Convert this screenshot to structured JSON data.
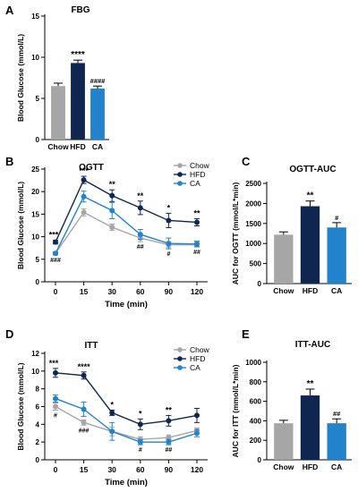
{
  "colors": {
    "chow": "#a6a6a6",
    "hfd": "#0f2650",
    "ca": "#2382cc",
    "axis": "#000000"
  },
  "chart_data": [
    {
      "id": "A",
      "panel_label": "A",
      "type": "bar",
      "title": "FBG",
      "ylabel": "Blood Glucose (mmol/L)",
      "xlabel": "",
      "ylim": [
        0,
        15
      ],
      "yticks": [
        0,
        5,
        10,
        15
      ],
      "categories": [
        "Chow",
        "HFD",
        "CA"
      ],
      "values": [
        6.5,
        9.3,
        6.2
      ],
      "errors": [
        0.35,
        0.35,
        0.3
      ],
      "bar_colors": [
        "#a6a6a6",
        "#0f2650",
        "#2382cc"
      ],
      "annotations": [
        "",
        "****",
        "####"
      ]
    },
    {
      "id": "B",
      "panel_label": "B",
      "type": "line",
      "title": "OGTT",
      "ylabel": "Blood Glucose (mmol/L)",
      "xlabel": "Time (min)",
      "ylim": [
        0,
        25
      ],
      "yticks": [
        0,
        5,
        10,
        15,
        20,
        25
      ],
      "x": [
        0,
        15,
        30,
        60,
        90,
        120
      ],
      "series": [
        {
          "name": "Chow",
          "color": "#a6a6a6",
          "marker": "circle",
          "values": [
            6.3,
            15.4,
            12.1,
            9.7,
            8.2,
            8.2
          ],
          "errors": [
            0.3,
            0.8,
            0.7,
            0.8,
            0.6,
            0.5
          ]
        },
        {
          "name": "HFD",
          "color": "#0f2650",
          "marker": "circle",
          "values": [
            8.8,
            22.6,
            19.1,
            16.4,
            13.6,
            13.2
          ],
          "errors": [
            0.4,
            0.8,
            1.3,
            1.5,
            1.6,
            0.8
          ]
        },
        {
          "name": "CA",
          "color": "#2382cc",
          "marker": "circle",
          "values": [
            6.3,
            18.9,
            15.8,
            10.5,
            8.5,
            8.4
          ],
          "errors": [
            0.3,
            1.2,
            1.8,
            1.1,
            1.2,
            0.6
          ]
        }
      ],
      "annotations_above": [
        "***",
        "***",
        "**",
        "**",
        "*",
        "**"
      ],
      "annotations_below": [
        "###",
        "",
        "",
        "##",
        "#",
        "##"
      ],
      "legend": [
        "Chow",
        "HFD",
        "CA"
      ],
      "legend_position": "top-right"
    },
    {
      "id": "C",
      "panel_label": "C",
      "type": "bar",
      "title": "OGTT-AUC",
      "ylabel": "AUC for OGTT (mmol/L*min)",
      "xlabel": "",
      "ylim": [
        0,
        2500
      ],
      "yticks": [
        0,
        500,
        1000,
        1500,
        2000,
        2500
      ],
      "categories": [
        "Chow",
        "HFD",
        "CA"
      ],
      "values": [
        1220,
        1930,
        1400
      ],
      "errors": [
        70,
        130,
        120
      ],
      "bar_colors": [
        "#a6a6a6",
        "#0f2650",
        "#2382cc"
      ],
      "annotations": [
        "",
        "**",
        "#"
      ]
    },
    {
      "id": "D",
      "panel_label": "D",
      "type": "line",
      "title": "ITT",
      "ylabel": "Blood Glucose (mmol/L)",
      "xlabel": "Time (min)",
      "ylim": [
        0,
        12
      ],
      "yticks": [
        0,
        2,
        4,
        6,
        8,
        10,
        12
      ],
      "x": [
        0,
        15,
        30,
        60,
        90,
        120
      ],
      "series": [
        {
          "name": "Chow",
          "color": "#a6a6a6",
          "marker": "circle",
          "values": [
            6.0,
            4.2,
            3.2,
            2.3,
            2.5,
            3.3
          ],
          "errors": [
            0.4,
            0.3,
            0.5,
            0.3,
            0.3,
            0.3
          ]
        },
        {
          "name": "HFD",
          "color": "#0f2650",
          "marker": "circle",
          "values": [
            9.8,
            9.5,
            5.3,
            4.0,
            4.4,
            5.0
          ],
          "errors": [
            0.5,
            0.4,
            0.3,
            0.6,
            0.6,
            0.8
          ]
        },
        {
          "name": "CA",
          "color": "#2382cc",
          "marker": "circle",
          "values": [
            6.9,
            5.7,
            3.2,
            2.0,
            2.0,
            3.0
          ],
          "errors": [
            0.4,
            0.8,
            1.0,
            0.3,
            0.3,
            0.4
          ]
        }
      ],
      "annotations_above": [
        "***",
        "****",
        "*",
        "*",
        "**",
        ""
      ],
      "annotations_below": [
        "#",
        "###",
        "",
        "#",
        "##",
        ""
      ],
      "legend": [
        "Chow",
        "HFD",
        "CA"
      ],
      "legend_position": "top-right"
    },
    {
      "id": "E",
      "panel_label": "E",
      "type": "bar",
      "title": "ITT-AUC",
      "ylabel": "AUC for ITT (mmol/L*min)",
      "xlabel": "",
      "ylim": [
        0,
        1000
      ],
      "yticks": [
        0,
        200,
        400,
        600,
        800,
        1000
      ],
      "categories": [
        "Chow",
        "HFD",
        "CA"
      ],
      "values": [
        375,
        660,
        375
      ],
      "errors": [
        30,
        65,
        45
      ],
      "bar_colors": [
        "#a6a6a6",
        "#0f2650",
        "#2382cc"
      ],
      "annotations": [
        "",
        "**",
        "##"
      ]
    }
  ]
}
